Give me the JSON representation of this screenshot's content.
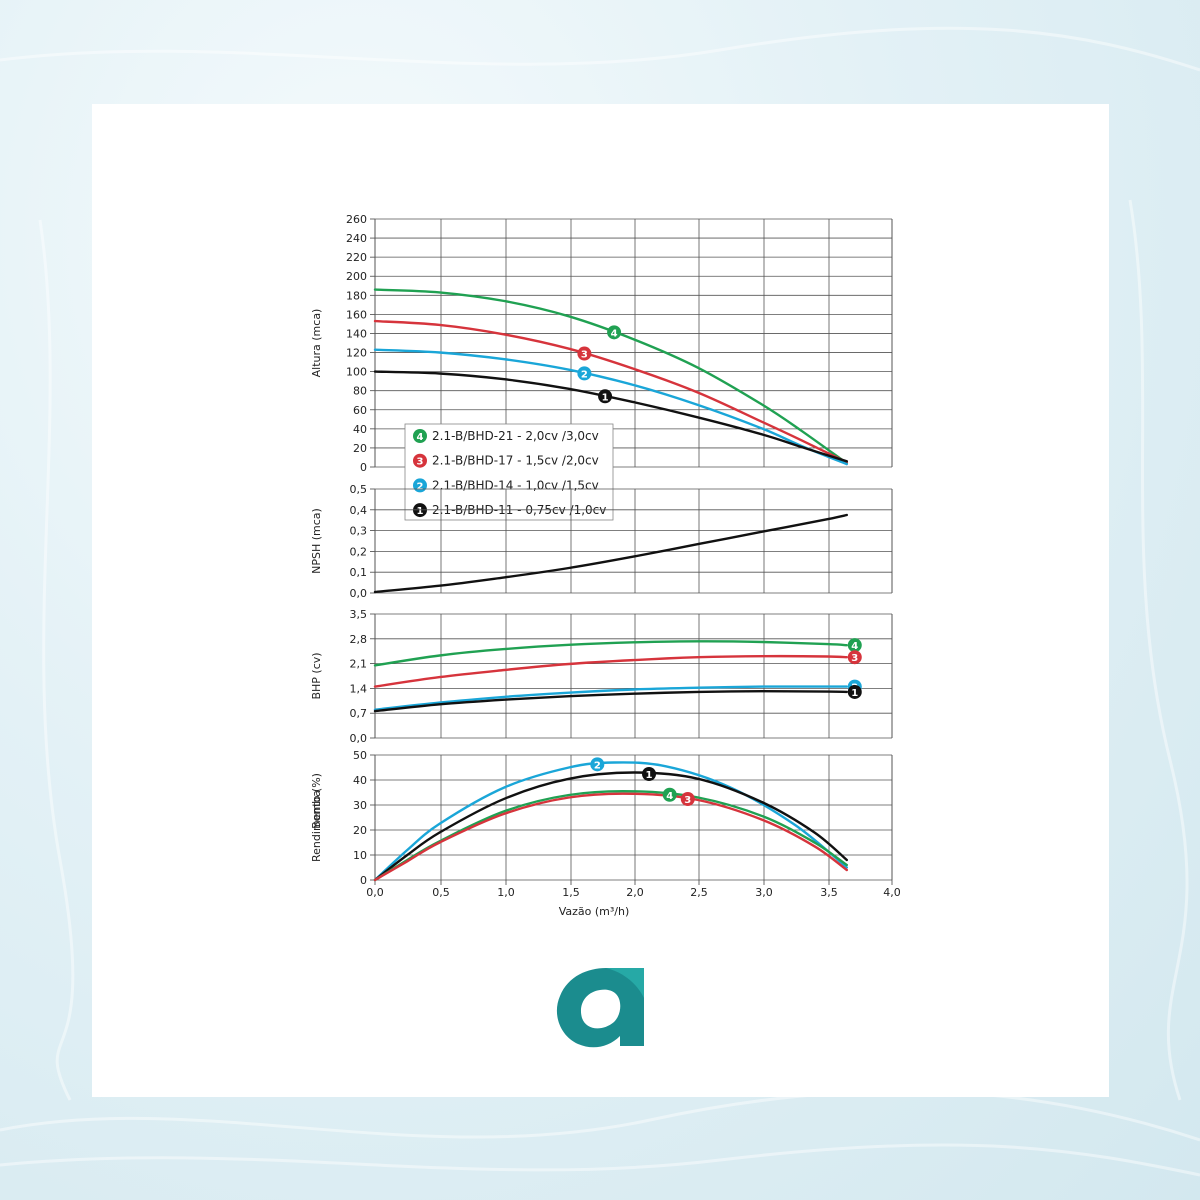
{
  "colors": {
    "series1": "#111111",
    "series2": "#1aa6d8",
    "series3": "#d6343c",
    "series4": "#20a152",
    "logo": "#1b8c8e",
    "grid": "#555555"
  },
  "logo": {
    "name": "a-logo-icon"
  },
  "chart_data": [
    {
      "type": "line",
      "ylabel": "Altura (mca)",
      "xlim": [
        0,
        4.0
      ],
      "ylim": [
        0,
        260
      ],
      "yticks": [
        "0",
        "20",
        "40",
        "60",
        "80",
        "100",
        "120",
        "140",
        "160",
        "180",
        "200",
        "220",
        "240",
        "260"
      ],
      "grid": true,
      "legend_position": "bottom-left",
      "legend": [
        {
          "marker": "4",
          "label": "2.1-B/BHD-21 - 2,0cv /3,0cv",
          "color": "#20a152"
        },
        {
          "marker": "3",
          "label": "2.1-B/BHD-17 - 1,5cv /2,0cv",
          "color": "#d6343c"
        },
        {
          "marker": "2",
          "label": "2.1-B/BHD-14 - 1,0cv /1,5cv",
          "color": "#1aa6d8"
        },
        {
          "marker": "1",
          "label": "2.1-B/BHD-11 - 0,75cv /1,0cv",
          "color": "#111111"
        }
      ],
      "series": [
        {
          "marker": "4",
          "color": "#20a152",
          "label_at": 1.85,
          "x": [
            0,
            0.5,
            1.0,
            1.5,
            2.0,
            2.5,
            3.0,
            3.3,
            3.65
          ],
          "y": [
            186,
            183,
            174,
            158,
            134,
            104,
            65,
            38,
            4
          ]
        },
        {
          "marker": "3",
          "color": "#d6343c",
          "label_at": 1.62,
          "x": [
            0,
            0.5,
            1.0,
            1.5,
            2.0,
            2.5,
            3.0,
            3.3,
            3.65
          ],
          "y": [
            153,
            149,
            139,
            124,
            103,
            78,
            47,
            28,
            5
          ]
        },
        {
          "marker": "2",
          "color": "#1aa6d8",
          "label_at": 1.62,
          "x": [
            0,
            0.5,
            1.0,
            1.5,
            2.0,
            2.5,
            3.0,
            3.3,
            3.65
          ],
          "y": [
            123,
            120,
            113,
            102,
            86,
            65,
            40,
            22,
            3
          ]
        },
        {
          "marker": "1",
          "color": "#111111",
          "label_at": 1.78,
          "x": [
            0,
            0.5,
            1.0,
            1.5,
            2.0,
            2.5,
            3.0,
            3.3,
            3.65
          ],
          "y": [
            100,
            98,
            92,
            82,
            68,
            52,
            34,
            21,
            6
          ]
        }
      ]
    },
    {
      "type": "line",
      "ylabel": "NPSH (mca)",
      "xlim": [
        0,
        4.0
      ],
      "ylim": [
        0,
        0.5
      ],
      "yticks": [
        "0,0",
        "0,1",
        "0,2",
        "0,3",
        "0,4",
        "0,5"
      ],
      "grid": true,
      "series": [
        {
          "color": "#111111",
          "x": [
            0,
            0.5,
            1.0,
            1.5,
            2.0,
            2.5,
            3.0,
            3.5,
            3.65
          ],
          "y": [
            0.005,
            0.035,
            0.075,
            0.12,
            0.175,
            0.235,
            0.295,
            0.355,
            0.375
          ]
        }
      ]
    },
    {
      "type": "line",
      "ylabel": "BHP (cv)",
      "xlim": [
        0,
        4.0
      ],
      "ylim": [
        0,
        3.5
      ],
      "yticks": [
        "0,0",
        "0,7",
        "1,4",
        "2,1",
        "2,8",
        "3,5"
      ],
      "grid": true,
      "series": [
        {
          "marker": "4",
          "color": "#20a152",
          "label_at": 3.7,
          "x": [
            0,
            0.5,
            1.0,
            1.5,
            2.0,
            2.5,
            3.0,
            3.5,
            3.65
          ],
          "y": [
            2.05,
            2.33,
            2.51,
            2.63,
            2.7,
            2.73,
            2.71,
            2.65,
            2.62
          ]
        },
        {
          "marker": "3",
          "color": "#d6343c",
          "label_at": 3.7,
          "x": [
            0,
            0.5,
            1.0,
            1.5,
            2.0,
            2.5,
            3.0,
            3.5,
            3.65
          ],
          "y": [
            1.45,
            1.72,
            1.92,
            2.09,
            2.2,
            2.28,
            2.31,
            2.3,
            2.28
          ]
        },
        {
          "marker": "2",
          "color": "#1aa6d8",
          "label_at": 3.7,
          "x": [
            0,
            0.5,
            1.0,
            1.5,
            2.0,
            2.5,
            3.0,
            3.5,
            3.65
          ],
          "y": [
            0.8,
            1.0,
            1.16,
            1.28,
            1.37,
            1.42,
            1.45,
            1.45,
            1.45
          ]
        },
        {
          "marker": "1",
          "color": "#111111",
          "label_at": 3.7,
          "x": [
            0,
            0.5,
            1.0,
            1.5,
            2.0,
            2.5,
            3.0,
            3.5,
            3.65
          ],
          "y": [
            0.76,
            0.95,
            1.08,
            1.18,
            1.25,
            1.3,
            1.32,
            1.31,
            1.3
          ]
        }
      ]
    },
    {
      "type": "line",
      "ylabel": "Rendimento (%)",
      "ylabel_overlap": "Bomba",
      "xlabel": "Vazão (m³/h)",
      "xlim": [
        0,
        4.0
      ],
      "ylim": [
        0,
        50
      ],
      "xticks": [
        "0,0",
        "0,5",
        "1,0",
        "1,5",
        "2,0",
        "2,5",
        "3,0",
        "3,5",
        "4,0"
      ],
      "yticks": [
        "0",
        "10",
        "20",
        "30",
        "40",
        "50"
      ],
      "grid": true,
      "series": [
        {
          "marker": "2",
          "color": "#1aa6d8",
          "label_at": 1.72,
          "x": [
            0,
            0.25,
            0.5,
            1.0,
            1.5,
            1.85,
            2.25,
            2.75,
            3.25,
            3.65
          ],
          "y": [
            0,
            12,
            22.5,
            37,
            45,
            47,
            45.5,
            37,
            22,
            5
          ]
        },
        {
          "marker": "1",
          "color": "#111111",
          "label_at": 2.12,
          "x": [
            0,
            0.25,
            0.5,
            1.0,
            1.5,
            2.0,
            2.5,
            3.0,
            3.4,
            3.65
          ],
          "y": [
            0,
            10,
            19,
            32.5,
            40.5,
            43,
            40.5,
            31,
            19,
            8
          ]
        },
        {
          "marker": "4",
          "color": "#20a152",
          "label_at": 2.28,
          "x": [
            0,
            0.25,
            0.5,
            1.0,
            1.5,
            2.0,
            2.5,
            3.0,
            3.4,
            3.65
          ],
          "y": [
            0,
            8,
            15.5,
            27.5,
            34,
            35.5,
            33,
            25.5,
            15,
            6
          ]
        },
        {
          "marker": "3",
          "color": "#d6343c",
          "label_at": 2.42,
          "x": [
            0,
            0.25,
            0.5,
            1.0,
            1.5,
            2.0,
            2.5,
            3.0,
            3.4,
            3.65
          ],
          "y": [
            0,
            7.5,
            15,
            26.5,
            33,
            34.5,
            32,
            24,
            13.5,
            4
          ]
        }
      ]
    }
  ]
}
